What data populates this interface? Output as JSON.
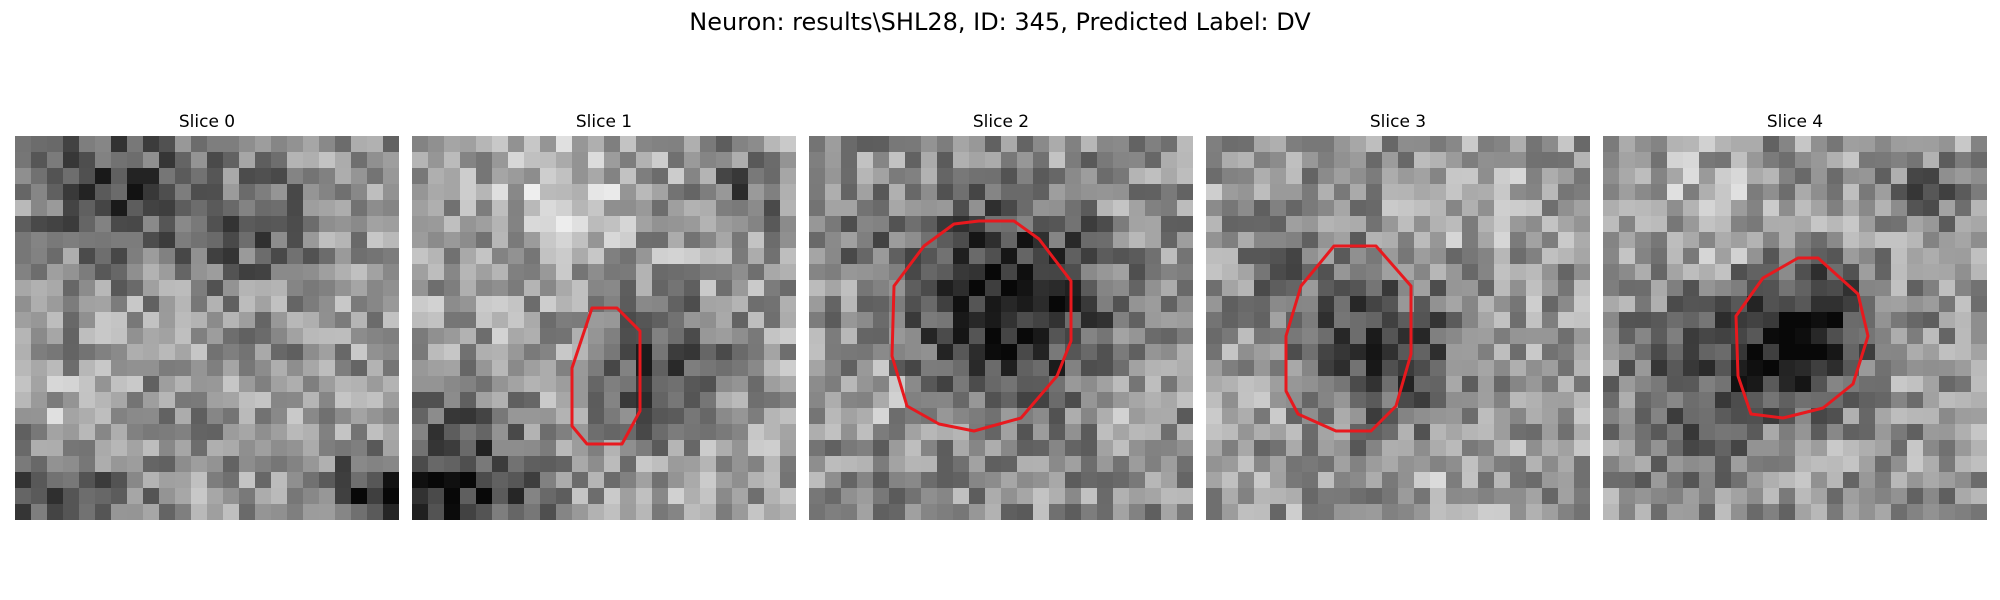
{
  "figure": {
    "suptitle": "Neuron: results\\SHL28, ID: 345, Predicted Label: DV"
  },
  "panels": [
    {
      "title": "Slice 0",
      "has_contour": false,
      "shade": "light-noisy"
    },
    {
      "title": "Slice 1",
      "has_contour": true,
      "shade": "dark-blob-lower-right"
    },
    {
      "title": "Slice 2",
      "has_contour": true,
      "shade": "dark-large-blob"
    },
    {
      "title": "Slice 3",
      "has_contour": true,
      "shade": "medium-blob"
    },
    {
      "title": "Slice 4",
      "has_contour": true,
      "shade": "dark-blob-right"
    }
  ],
  "colors": {
    "contour": "#e8191e",
    "background": "#ffffff"
  }
}
